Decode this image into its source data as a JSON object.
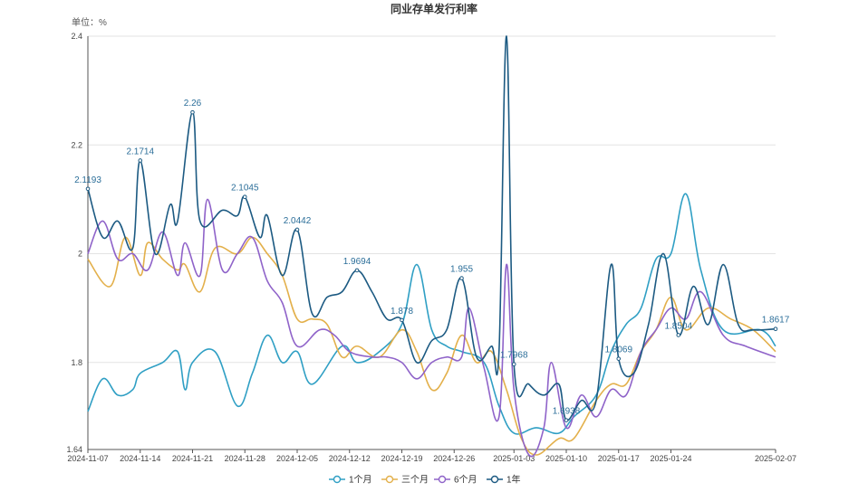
{
  "chart_data": {
    "type": "line",
    "title": "同业存单发行利率",
    "unit_label": "单位：%",
    "xlabel": "",
    "ylabel": "",
    "ylim": [
      1.64,
      2.4
    ],
    "y_ticks": [
      1.64,
      1.8,
      2.0,
      2.2,
      2.4
    ],
    "y_tick_labels": [
      "1.64",
      "1.8",
      "2",
      "2.2",
      "2.4"
    ],
    "x_range": [
      "2024-11-07",
      "2025-02-07"
    ],
    "x_ticks": [
      "2024-11-07",
      "2024-11-14",
      "2024-11-21",
      "2024-11-28",
      "2024-12-05",
      "2024-12-12",
      "2024-12-19",
      "2024-12-26",
      "2025-01-03",
      "2025-01-10",
      "2025-01-17",
      "2025-01-24",
      "2025-02-07"
    ],
    "grid": true,
    "legend_position": "bottom",
    "series": [
      {
        "name": "1个月",
        "color": "#2f9fc4",
        "points": [
          [
            "2024-11-07",
            1.71
          ],
          [
            "2024-11-09",
            1.77
          ],
          [
            "2024-11-11",
            1.74
          ],
          [
            "2024-11-13",
            1.75
          ],
          [
            "2024-11-14",
            1.78
          ],
          [
            "2024-11-17",
            1.8
          ],
          [
            "2024-11-19",
            1.82
          ],
          [
            "2024-11-20",
            1.75
          ],
          [
            "2024-11-21",
            1.8
          ],
          [
            "2024-11-24",
            1.82
          ],
          [
            "2024-11-27",
            1.72
          ],
          [
            "2024-11-29",
            1.78
          ],
          [
            "2024-12-01",
            1.85
          ],
          [
            "2024-12-03",
            1.8
          ],
          [
            "2024-12-05",
            1.82
          ],
          [
            "2024-12-07",
            1.76
          ],
          [
            "2024-12-11",
            1.83
          ],
          [
            "2024-12-13",
            1.8
          ],
          [
            "2024-12-16",
            1.82
          ],
          [
            "2024-12-19",
            1.87
          ],
          [
            "2024-12-21",
            1.98
          ],
          [
            "2024-12-23",
            1.86
          ],
          [
            "2024-12-25",
            1.83
          ],
          [
            "2024-12-27",
            1.82
          ],
          [
            "2024-12-30",
            1.8
          ],
          [
            "2025-01-01",
            1.72
          ],
          [
            "2025-01-03",
            1.67
          ],
          [
            "2025-01-06",
            1.68
          ],
          [
            "2025-01-09",
            1.67
          ],
          [
            "2025-01-11",
            1.7
          ],
          [
            "2025-01-14",
            1.74
          ],
          [
            "2025-01-16",
            1.82
          ],
          [
            "2025-01-18",
            1.87
          ],
          [
            "2025-01-20",
            1.9
          ],
          [
            "2025-01-22",
            1.99
          ],
          [
            "2025-01-24",
            2.0
          ],
          [
            "2025-01-26",
            2.11
          ],
          [
            "2025-01-28",
            1.97
          ],
          [
            "2025-01-31",
            1.86
          ],
          [
            "2025-02-05",
            1.86
          ],
          [
            "2025-02-07",
            1.83
          ]
        ]
      },
      {
        "name": "三个月",
        "color": "#e3b04b",
        "points": [
          [
            "2024-11-07",
            1.99
          ],
          [
            "2024-11-10",
            1.94
          ],
          [
            "2024-11-12",
            2.03
          ],
          [
            "2024-11-14",
            1.96
          ],
          [
            "2024-11-15",
            2.02
          ],
          [
            "2024-11-17",
            1.99
          ],
          [
            "2024-11-19",
            1.97
          ],
          [
            "2024-11-20",
            1.98
          ],
          [
            "2024-11-22",
            1.93
          ],
          [
            "2024-11-24",
            2.01
          ],
          [
            "2024-11-27",
            2.0
          ],
          [
            "2024-11-29",
            2.03
          ],
          [
            "2024-12-01",
            2.0
          ],
          [
            "2024-12-03",
            1.96
          ],
          [
            "2024-12-05",
            1.88
          ],
          [
            "2024-12-07",
            1.88
          ],
          [
            "2024-12-09",
            1.87
          ],
          [
            "2024-12-11",
            1.81
          ],
          [
            "2024-12-13",
            1.83
          ],
          [
            "2024-12-16",
            1.81
          ],
          [
            "2024-12-19",
            1.86
          ],
          [
            "2024-12-21",
            1.82
          ],
          [
            "2024-12-23",
            1.75
          ],
          [
            "2024-12-25",
            1.78
          ],
          [
            "2024-12-27",
            1.85
          ],
          [
            "2024-12-29",
            1.8
          ],
          [
            "2024-12-31",
            1.82
          ],
          [
            "2025-01-02",
            1.75
          ],
          [
            "2025-01-04",
            1.66
          ],
          [
            "2025-01-06",
            1.63
          ],
          [
            "2025-01-09",
            1.66
          ],
          [
            "2025-01-11",
            1.66
          ],
          [
            "2025-01-14",
            1.73
          ],
          [
            "2025-01-16",
            1.76
          ],
          [
            "2025-01-18",
            1.76
          ],
          [
            "2025-01-20",
            1.82
          ],
          [
            "2025-01-22",
            1.86
          ],
          [
            "2025-01-24",
            1.92
          ],
          [
            "2025-01-26",
            1.86
          ],
          [
            "2025-01-29",
            1.9
          ],
          [
            "2025-02-01",
            1.88
          ],
          [
            "2025-02-04",
            1.86
          ],
          [
            "2025-02-07",
            1.82
          ]
        ]
      },
      {
        "name": "6个月",
        "color": "#8f63c9",
        "points": [
          [
            "2024-11-07",
            2.0
          ],
          [
            "2024-11-09",
            2.06
          ],
          [
            "2024-11-11",
            1.99
          ],
          [
            "2024-11-13",
            2.0
          ],
          [
            "2024-11-15",
            1.97
          ],
          [
            "2024-11-17",
            2.04
          ],
          [
            "2024-11-19",
            1.96
          ],
          [
            "2024-11-20",
            2.02
          ],
          [
            "2024-11-22",
            1.96
          ],
          [
            "2024-11-23",
            2.1
          ],
          [
            "2024-11-25",
            1.97
          ],
          [
            "2024-11-27",
            2.0
          ],
          [
            "2024-11-29",
            2.03
          ],
          [
            "2024-12-01",
            1.95
          ],
          [
            "2024-12-03",
            1.91
          ],
          [
            "2024-12-05",
            1.83
          ],
          [
            "2024-12-08",
            1.86
          ],
          [
            "2024-12-10",
            1.85
          ],
          [
            "2024-12-12",
            1.82
          ],
          [
            "2024-12-15",
            1.81
          ],
          [
            "2024-12-17",
            1.81
          ],
          [
            "2024-12-19",
            1.8
          ],
          [
            "2024-12-21",
            1.77
          ],
          [
            "2024-12-23",
            1.8
          ],
          [
            "2024-12-25",
            1.81
          ],
          [
            "2024-12-27",
            1.81
          ],
          [
            "2024-12-28",
            1.9
          ],
          [
            "2024-12-30",
            1.79
          ],
          [
            "2025-01-01",
            1.7
          ],
          [
            "2025-01-02",
            1.98
          ],
          [
            "2025-01-03",
            1.75
          ],
          [
            "2025-01-05",
            1.63
          ],
          [
            "2025-01-07",
            1.68
          ],
          [
            "2025-01-08",
            1.8
          ],
          [
            "2025-01-10",
            1.68
          ],
          [
            "2025-01-12",
            1.74
          ],
          [
            "2025-01-14",
            1.7
          ],
          [
            "2025-01-16",
            1.75
          ],
          [
            "2025-01-18",
            1.74
          ],
          [
            "2025-01-20",
            1.82
          ],
          [
            "2025-01-22",
            1.86
          ],
          [
            "2025-01-24",
            1.9
          ],
          [
            "2025-01-26",
            1.88
          ],
          [
            "2025-01-28",
            1.93
          ],
          [
            "2025-01-31",
            1.85
          ],
          [
            "2025-02-03",
            1.83
          ],
          [
            "2025-02-07",
            1.81
          ]
        ]
      },
      {
        "name": "1年",
        "color": "#1c5a82",
        "points": [
          [
            "2024-11-07",
            2.1193
          ],
          [
            "2024-11-09",
            2.03
          ],
          [
            "2024-11-11",
            2.06
          ],
          [
            "2024-11-13",
            2.01
          ],
          [
            "2024-11-14",
            2.1714
          ],
          [
            "2024-11-16",
            2.0
          ],
          [
            "2024-11-18",
            2.09
          ],
          [
            "2024-11-19",
            2.06
          ],
          [
            "2024-11-21",
            2.26
          ],
          [
            "2024-11-22",
            2.06
          ],
          [
            "2024-11-25",
            2.08
          ],
          [
            "2024-11-27",
            2.07
          ],
          [
            "2024-11-28",
            2.1045
          ],
          [
            "2024-11-30",
            2.03
          ],
          [
            "2024-12-01",
            2.07
          ],
          [
            "2024-12-03",
            1.96
          ],
          [
            "2024-12-05",
            2.0442
          ],
          [
            "2024-12-07",
            1.89
          ],
          [
            "2024-12-09",
            1.92
          ],
          [
            "2024-12-11",
            1.93
          ],
          [
            "2024-12-13",
            1.9694
          ],
          [
            "2024-12-15",
            1.93
          ],
          [
            "2024-12-17",
            1.88
          ],
          [
            "2024-12-19",
            1.878
          ],
          [
            "2024-12-21",
            1.8
          ],
          [
            "2024-12-23",
            1.84
          ],
          [
            "2024-12-25",
            1.86
          ],
          [
            "2024-12-27",
            1.955
          ],
          [
            "2024-12-29",
            1.81
          ],
          [
            "2024-12-31",
            1.83
          ],
          [
            "2025-01-01",
            1.82
          ],
          [
            "2025-01-02",
            2.4
          ],
          [
            "2025-01-03",
            1.7968
          ],
          [
            "2025-01-05",
            1.76
          ],
          [
            "2025-01-07",
            1.74
          ],
          [
            "2025-01-09",
            1.76
          ],
          [
            "2025-01-10",
            1.6938
          ],
          [
            "2025-01-12",
            1.73
          ],
          [
            "2025-01-14",
            1.73
          ],
          [
            "2025-01-16",
            1.98
          ],
          [
            "2025-01-17",
            1.8069
          ],
          [
            "2025-01-19",
            1.78
          ],
          [
            "2025-01-21",
            1.87
          ],
          [
            "2025-01-23",
            2.0
          ],
          [
            "2025-01-25",
            1.8504
          ],
          [
            "2025-01-27",
            1.94
          ],
          [
            "2025-01-29",
            1.87
          ],
          [
            "2025-01-31",
            1.98
          ],
          [
            "2025-02-02",
            1.87
          ],
          [
            "2025-02-04",
            1.86
          ],
          [
            "2025-02-07",
            1.8617
          ]
        ]
      }
    ],
    "data_labels": [
      {
        "series": "1年",
        "x": "2024-11-07",
        "y": 2.1193,
        "text": "2.1193"
      },
      {
        "series": "1年",
        "x": "2024-11-14",
        "y": 2.1714,
        "text": "2.1714"
      },
      {
        "series": "1年",
        "x": "2024-11-21",
        "y": 2.26,
        "text": "2.26"
      },
      {
        "series": "1年",
        "x": "2024-11-28",
        "y": 2.1045,
        "text": "2.1045"
      },
      {
        "series": "1年",
        "x": "2024-12-05",
        "y": 2.0442,
        "text": "2.0442"
      },
      {
        "series": "1年",
        "x": "2024-12-13",
        "y": 1.9694,
        "text": "1.9694"
      },
      {
        "series": "1年",
        "x": "2024-12-19",
        "y": 1.878,
        "text": "1.878"
      },
      {
        "series": "1年",
        "x": "2024-12-27",
        "y": 1.955,
        "text": "1.955"
      },
      {
        "series": "1年",
        "x": "2025-01-03",
        "y": 1.7968,
        "text": "1.7968"
      },
      {
        "series": "1年",
        "x": "2025-01-10",
        "y": 1.6938,
        "text": "1.6938"
      },
      {
        "series": "1年",
        "x": "2025-01-17",
        "y": 1.8069,
        "text": "1.8069"
      },
      {
        "series": "1年",
        "x": "2025-01-25",
        "y": 1.8504,
        "text": "1.8504"
      },
      {
        "series": "1年",
        "x": "2025-02-07",
        "y": 1.8617,
        "text": "1.8617"
      }
    ]
  }
}
